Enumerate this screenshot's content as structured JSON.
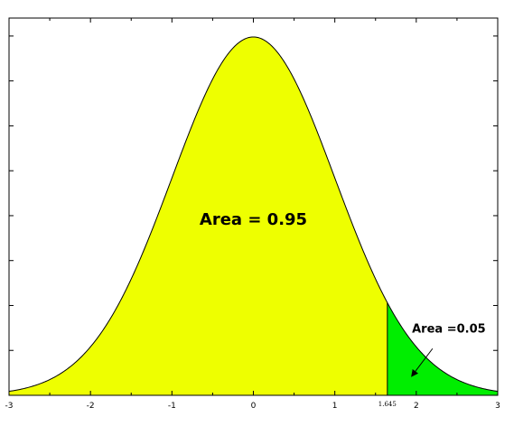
{
  "chart_data": {
    "type": "area",
    "title": "",
    "xlabel": "",
    "ylabel": "",
    "xlim": [
      -3,
      3
    ],
    "ylim": [
      0,
      0.42
    ],
    "grid": false,
    "x_ticks": [
      "-3",
      "-2",
      "-1",
      "0",
      "1",
      "2",
      "3"
    ],
    "critical_value": 1.645,
    "critical_value_label": "1.645",
    "curve": "standard normal density",
    "regions": [
      {
        "x_from": -3,
        "x_to": 1.645,
        "area": 0.95,
        "label": "Area = 0.95",
        "color": "#eeff00"
      },
      {
        "x_from": 1.645,
        "x_to": 3,
        "area": 0.05,
        "label": "Area =0.05",
        "color": "#00ee00"
      }
    ],
    "colors": {
      "curve": "#000000",
      "axes": "#000000"
    }
  }
}
